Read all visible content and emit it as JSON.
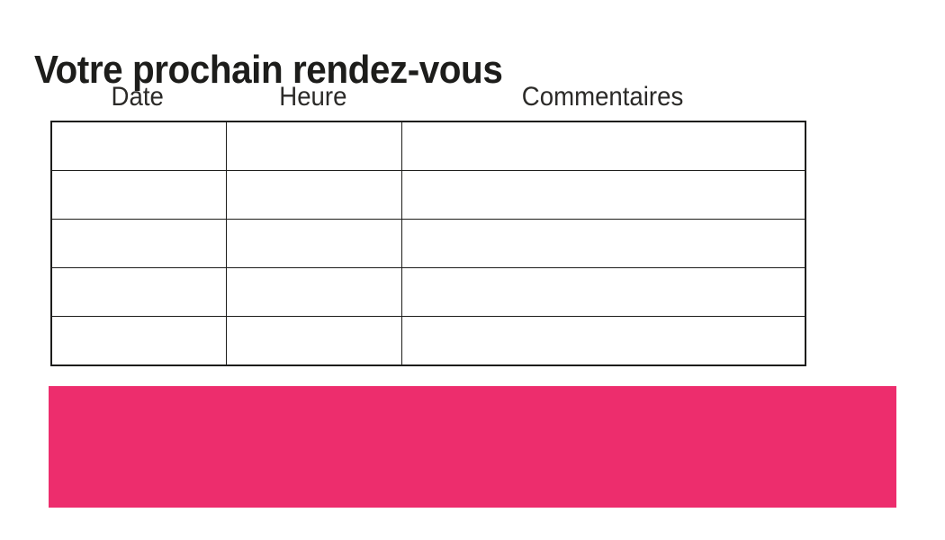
{
  "page": {
    "background": "#FFFFFF",
    "title": "Votre prochain rendez-vous",
    "title_color": "#1D1D1B"
  },
  "table": {
    "columns": [
      {
        "id": "date",
        "label": "Date"
      },
      {
        "id": "heure",
        "label": "Heure"
      },
      {
        "id": "commentaires",
        "label": "Commentaires"
      }
    ],
    "rows": [
      [
        "",
        "",
        ""
      ],
      [
        "",
        "",
        ""
      ],
      [
        "",
        "",
        ""
      ],
      [
        "",
        "",
        ""
      ],
      [
        "",
        "",
        ""
      ]
    ],
    "border_color": "#1D1D1B",
    "header_text_color": "#2B2A28"
  },
  "banner": {
    "color": "#ED2D6D",
    "label": ""
  }
}
